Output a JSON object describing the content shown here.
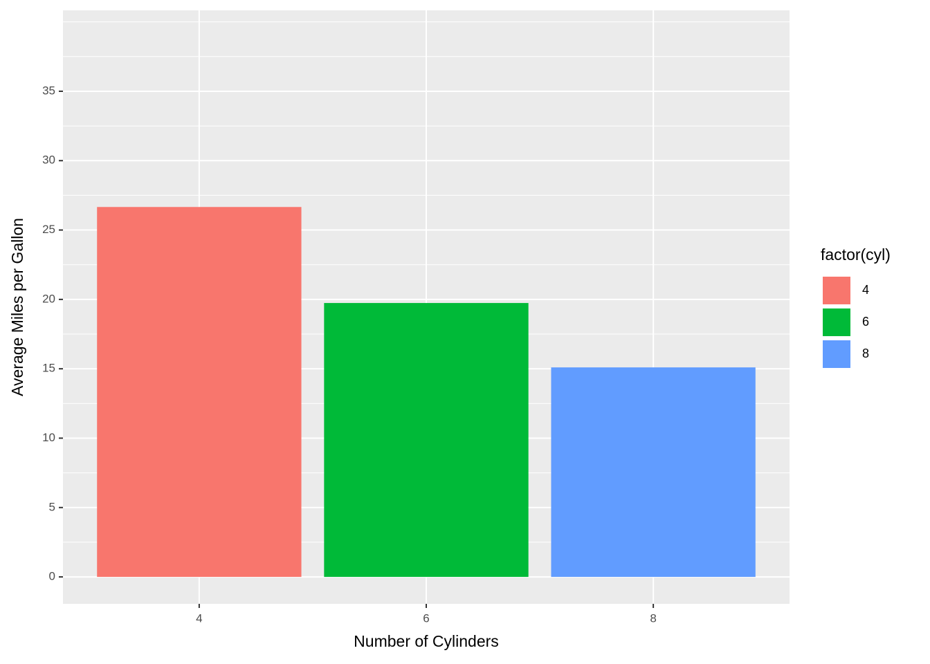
{
  "chart_data": {
    "type": "bar",
    "x_label": "Number of Cylinders",
    "y_label": "Average Miles per Gallon",
    "legend_title": "factor(cyl)",
    "categories": [
      "4",
      "6",
      "8"
    ],
    "values": [
      26.66,
      19.74,
      15.1
    ],
    "colors": [
      "#f8766d",
      "#00ba38",
      "#619cff"
    ],
    "ylim": [
      -1.94,
      40.83
    ],
    "yticks": [
      0,
      5,
      10,
      15,
      20,
      25,
      30,
      35
    ],
    "minor_yticks": [
      2.5,
      7.5,
      12.5,
      17.5,
      22.5,
      27.5,
      32.5,
      37.5,
      40
    ],
    "grid": true,
    "legend": "right"
  }
}
